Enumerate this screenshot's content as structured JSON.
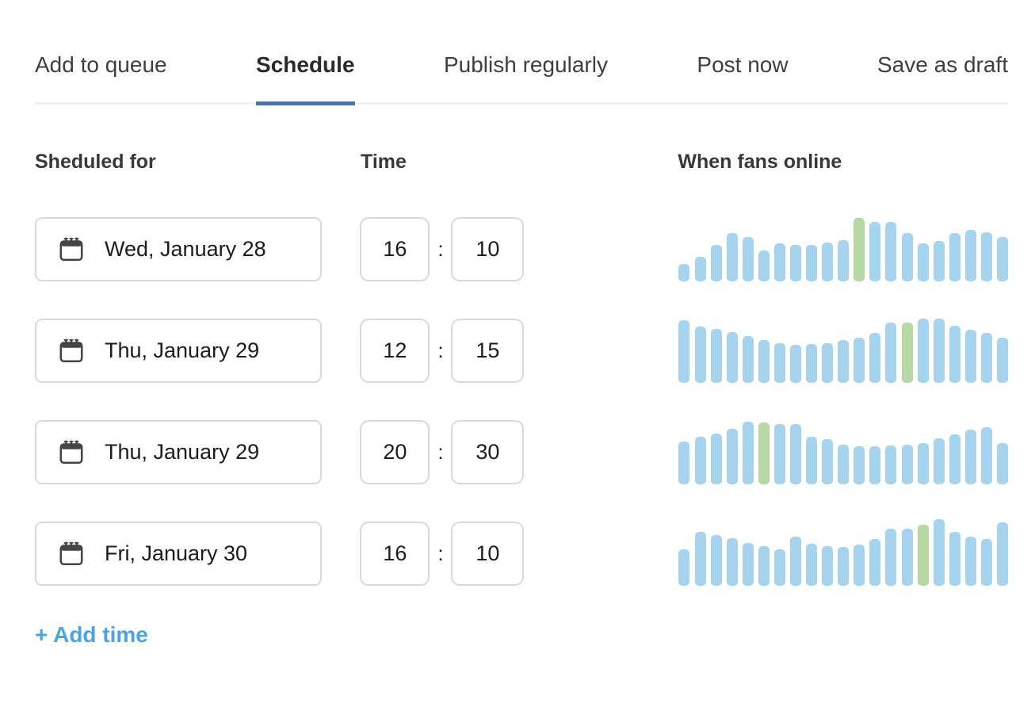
{
  "tabs": {
    "items": [
      {
        "label": "Add to queue",
        "active": false
      },
      {
        "label": "Schedule",
        "active": true
      },
      {
        "label": "Publish regularly",
        "active": false
      },
      {
        "label": "Post now",
        "active": false
      },
      {
        "label": "Save as draft",
        "active": false
      }
    ]
  },
  "headers": {
    "scheduled_for": "Sheduled for",
    "time": "Time",
    "fans_online": "When fans online"
  },
  "rows": [
    {
      "date": "Wed, January 28",
      "hour": "16",
      "minute": "10"
    },
    {
      "date": "Thu, January 29",
      "hour": "12",
      "minute": "15"
    },
    {
      "date": "Thu, January 29",
      "hour": "20",
      "minute": "30"
    },
    {
      "date": "Fri, January 30",
      "hour": "16",
      "minute": "10"
    }
  ],
  "time_separator": ":",
  "add_time_label": "+ Add time",
  "icons": {
    "date_field_icon": "calendar-icon"
  },
  "colors": {
    "accent": "#4a74ad",
    "bar_blue": "#a6d3ee",
    "bar_green": "#b7d8a2",
    "link_blue": "#4aa5de"
  },
  "chart_data": [
    {
      "type": "bar",
      "title": "When fans online (row 1: Wed, January 28)",
      "values": [
        22,
        31,
        46,
        61,
        56,
        39,
        48,
        46,
        46,
        49,
        52,
        80,
        75,
        75,
        61,
        48,
        51,
        61,
        65,
        62,
        56
      ],
      "highlight_index": 11,
      "bar_color": "#a6d3ee",
      "highlight_color": "#b7d8a2",
      "xlabel": "",
      "ylabel": "",
      "ylim": [
        0,
        90
      ],
      "grid": false,
      "legend": false
    },
    {
      "type": "bar",
      "title": "When fans online (row 2: Thu, January 29)",
      "values": [
        79,
        71,
        68,
        64,
        59,
        54,
        50,
        48,
        49,
        50,
        54,
        57,
        63,
        76,
        76,
        81,
        81,
        72,
        67,
        63,
        57
      ],
      "highlight_index": 14,
      "bar_color": "#a6d3ee",
      "highlight_color": "#b7d8a2",
      "xlabel": "",
      "ylabel": "",
      "ylim": [
        0,
        90
      ],
      "grid": false,
      "legend": false
    },
    {
      "type": "bar",
      "title": "When fans online (row 3: Thu, January 29)",
      "values": [
        54,
        60,
        64,
        70,
        79,
        78,
        76,
        76,
        60,
        57,
        50,
        48,
        48,
        49,
        50,
        52,
        58,
        63,
        69,
        72,
        52
      ],
      "highlight_index": 5,
      "bar_color": "#a6d3ee",
      "highlight_color": "#b7d8a2",
      "xlabel": "",
      "ylabel": "",
      "ylim": [
        0,
        90
      ],
      "grid": false,
      "legend": false
    },
    {
      "type": "bar",
      "title": "When fans online (row 4: Fri, January 30)",
      "values": [
        46,
        68,
        64,
        60,
        54,
        50,
        46,
        62,
        53,
        50,
        49,
        52,
        59,
        72,
        72,
        77,
        84,
        68,
        62,
        59,
        80
      ],
      "highlight_index": 15,
      "bar_color": "#a6d3ee",
      "highlight_color": "#b7d8a2",
      "xlabel": "",
      "ylabel": "",
      "ylim": [
        0,
        90
      ],
      "grid": false,
      "legend": false
    }
  ]
}
